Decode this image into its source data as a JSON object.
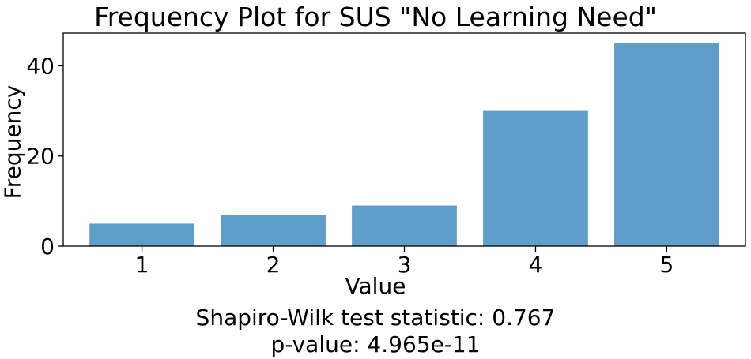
{
  "chart_data": {
    "type": "bar",
    "title": "Frequency Plot for SUS \"No Learning Need\"",
    "xlabel": "Value",
    "ylabel": "Frequency",
    "categories": [
      "1",
      "2",
      "3",
      "4",
      "5"
    ],
    "values": [
      5,
      7,
      9,
      30,
      45
    ],
    "ylim": [
      0,
      47.25
    ],
    "yticks": [
      0,
      20,
      40
    ],
    "bar_color": "#5f9ec8",
    "grid": false,
    "annotations": [
      "Shapiro-Wilk test statistic: 0.767",
      "p-value: 4.965e-11"
    ]
  }
}
